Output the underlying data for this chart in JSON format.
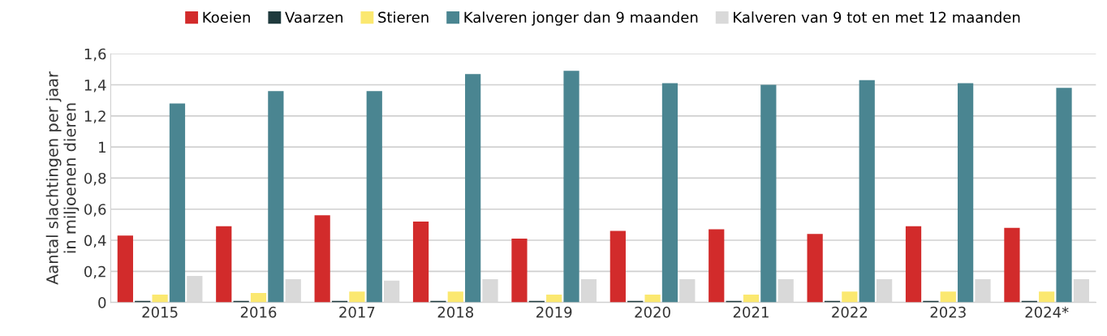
{
  "chart_data": {
    "type": "bar",
    "ylabel": "Aantal slachtingen per jaar\nin miljoenen dieren",
    "categories": [
      "2015",
      "2016",
      "2017",
      "2018",
      "2019",
      "2020",
      "2021",
      "2022",
      "2023",
      "2024*"
    ],
    "series": [
      {
        "name": "Koeien",
        "color": "#d22b2b",
        "values": [
          0.43,
          0.49,
          0.56,
          0.52,
          0.41,
          0.46,
          0.47,
          0.44,
          0.49,
          0.48
        ]
      },
      {
        "name": "Vaarzen",
        "color": "#1f3a3d",
        "values": [
          0.01,
          0.01,
          0.01,
          0.01,
          0.01,
          0.01,
          0.01,
          0.01,
          0.01,
          0.01
        ]
      },
      {
        "name": "Stieren",
        "color": "#fbe870",
        "values": [
          0.05,
          0.06,
          0.07,
          0.07,
          0.05,
          0.05,
          0.05,
          0.07,
          0.07,
          0.07
        ]
      },
      {
        "name": "Kalveren jonger dan 9 maanden",
        "color": "#4a8591",
        "values": [
          1.28,
          1.36,
          1.36,
          1.47,
          1.49,
          1.41,
          1.4,
          1.43,
          1.41,
          1.38
        ]
      },
      {
        "name": "Kalveren van 9 tot en met 12 maanden",
        "color": "#d9d9d9",
        "values": [
          0.17,
          0.15,
          0.14,
          0.15,
          0.15,
          0.15,
          0.15,
          0.15,
          0.15,
          0.15
        ]
      }
    ],
    "ylim": [
      0,
      1.6
    ],
    "yticks": [
      0,
      {
        "value": 0.2,
        "label": "0,2"
      },
      {
        "value": 0.4,
        "label": "0,4"
      },
      {
        "value": 0.6,
        "label": "0,6"
      },
      {
        "value": 0.8,
        "label": "0,8"
      },
      1,
      {
        "value": 1.2,
        "label": "1,2"
      },
      {
        "value": 1.4,
        "label": "1,4"
      },
      {
        "value": 1.6,
        "label": "1,6"
      }
    ],
    "grid": "y",
    "legend": "top"
  }
}
